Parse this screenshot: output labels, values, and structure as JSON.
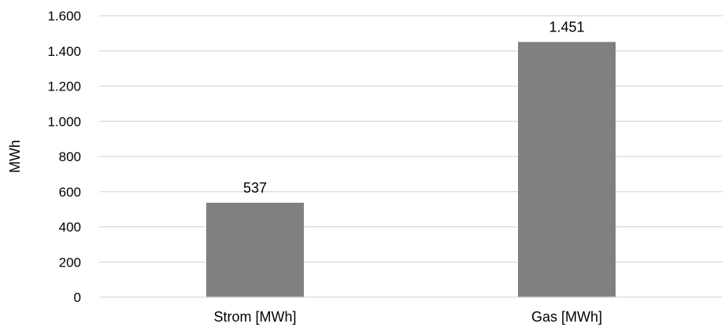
{
  "chart_data": {
    "type": "bar",
    "title": "",
    "xlabel": "",
    "ylabel": "MWh",
    "categories": [
      "Strom [MWh]",
      "Gas [MWh]"
    ],
    "values": [
      537,
      1451
    ],
    "data_labels": [
      "537",
      "1.451"
    ],
    "ylim": [
      0,
      1600
    ],
    "y_ticks": [
      0,
      200,
      400,
      600,
      800,
      1000,
      1200,
      1400,
      1600
    ],
    "y_tick_labels": [
      "0",
      "200",
      "400",
      "600",
      "800",
      "1.000",
      "1.200",
      "1.400",
      "1.600"
    ],
    "grid": true,
    "legend": "none",
    "bar_color": "#808080",
    "grid_color": "#d9d9d9"
  }
}
